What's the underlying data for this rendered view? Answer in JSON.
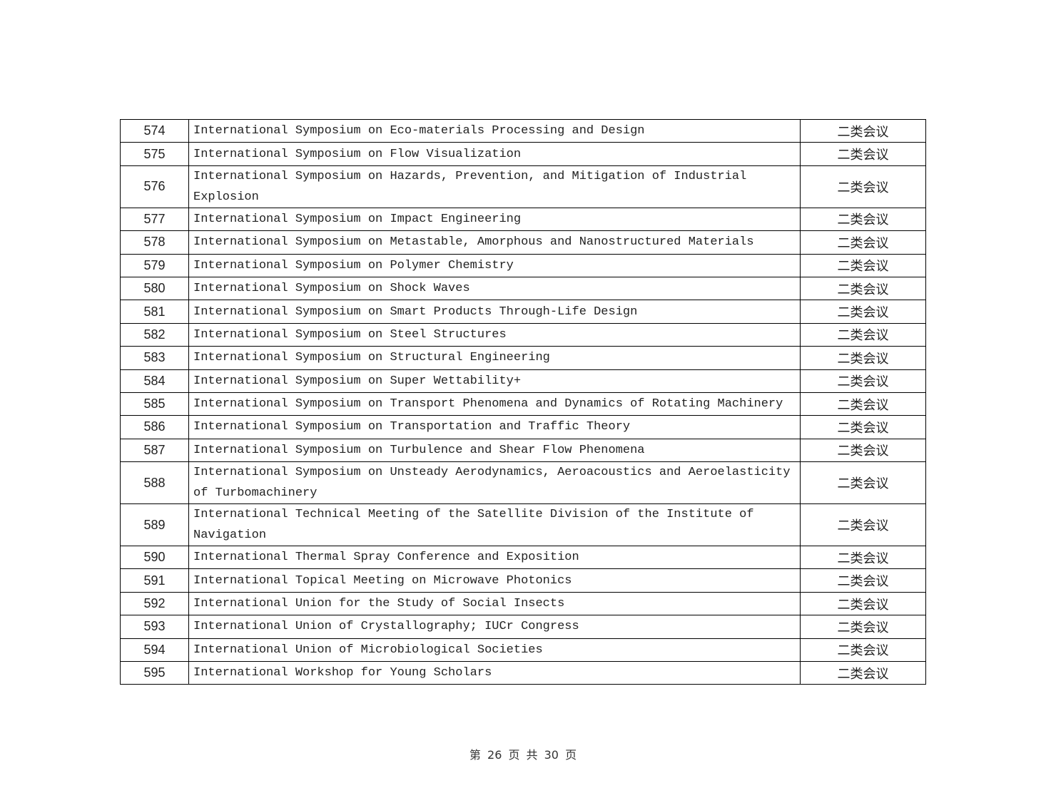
{
  "rows": [
    {
      "no": "574",
      "name": "International Symposium on Eco-materials Processing and Design",
      "category": "二类会议"
    },
    {
      "no": "575",
      "name": "International Symposium on Flow Visualization",
      "category": "二类会议"
    },
    {
      "no": "576",
      "name": "International Symposium on Hazards, Prevention, and Mitigation of Industrial Explosion",
      "category": "二类会议",
      "double": true
    },
    {
      "no": "577",
      "name": "International Symposium on Impact Engineering",
      "category": "二类会议"
    },
    {
      "no": "578",
      "name": "International Symposium on Metastable, Amorphous and Nanostructured Materials",
      "category": "二类会议"
    },
    {
      "no": "579",
      "name": "International Symposium on Polymer Chemistry",
      "category": "二类会议"
    },
    {
      "no": "580",
      "name": "International Symposium on Shock Waves",
      "category": "二类会议"
    },
    {
      "no": "581",
      "name": "International Symposium on Smart Products Through-Life Design",
      "category": "二类会议"
    },
    {
      "no": "582",
      "name": "International Symposium on Steel Structures",
      "category": "二类会议"
    },
    {
      "no": "583",
      "name": "International Symposium on Structural Engineering",
      "category": "二类会议"
    },
    {
      "no": "584",
      "name": "International Symposium on Super Wettability+",
      "category": "二类会议"
    },
    {
      "no": "585",
      "name": "International Symposium on Transport Phenomena and Dynamics of Rotating Machinery",
      "category": "二类会议"
    },
    {
      "no": "586",
      "name": "International Symposium on Transportation and Traffic Theory",
      "category": "二类会议"
    },
    {
      "no": "587",
      "name": "International Symposium on Turbulence and Shear Flow Phenomena",
      "category": "二类会议"
    },
    {
      "no": "588",
      "name": "International Symposium on Unsteady Aerodynamics, Aeroacoustics and Aeroelasticity of Turbomachinery",
      "category": "二类会议",
      "double": true
    },
    {
      "no": "589",
      "name": "International Technical Meeting of the Satellite Division of the Institute of Navigation",
      "category": "二类会议",
      "double": true
    },
    {
      "no": "590",
      "name": "International Thermal Spray Conference and Exposition",
      "category": "二类会议"
    },
    {
      "no": "591",
      "name": "International Topical Meeting on Microwave Photonics",
      "category": "二类会议"
    },
    {
      "no": "592",
      "name": "International Union for the Study of Social Insects",
      "category": "二类会议"
    },
    {
      "no": "593",
      "name": "International Union of Crystallography; IUCr Congress",
      "category": "二类会议"
    },
    {
      "no": "594",
      "name": "International Union of Microbiological Societies",
      "category": "二类会议"
    },
    {
      "no": "595",
      "name": "International Workshop for Young Scholars",
      "category": "二类会议"
    }
  ],
  "footer": {
    "page_text": "第 26 页 共 30 页"
  }
}
